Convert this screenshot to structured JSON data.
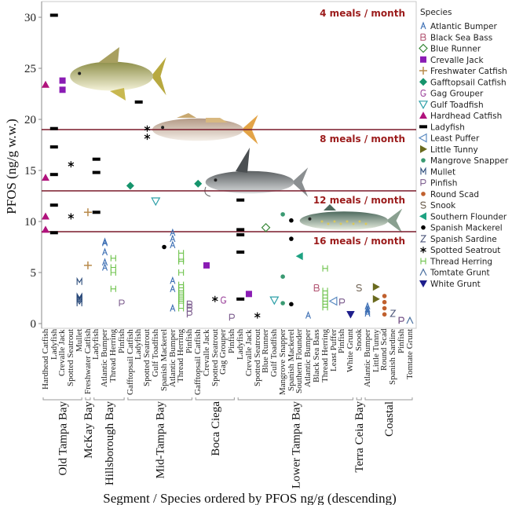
{
  "chart_data": {
    "type": "scatter",
    "xlabel": "Segment / Species ordered by PFOS ng/g (descending)",
    "ylabel": "PFOS (ng/g w.w.)",
    "ylim": [
      0,
      31
    ],
    "yticks": [
      0,
      5,
      10,
      15,
      20,
      25,
      30
    ],
    "grid": false,
    "legend": {
      "title": "Species",
      "placement": "right",
      "entries": [
        {
          "name": "Atlantic Bumper",
          "marker": "letter",
          "symbol": "A",
          "color": "#3d6fb4"
        },
        {
          "name": "Black Sea Bass",
          "marker": "letter",
          "symbol": "B",
          "color": "#b0506e"
        },
        {
          "name": "Blue Runner",
          "marker": "diamond-open",
          "color": "#3c8a3c"
        },
        {
          "name": "Crevalle Jack",
          "marker": "square",
          "color": "#8a1cb4"
        },
        {
          "name": "Freshwater Catfish",
          "marker": "plus",
          "color": "#b88a4a"
        },
        {
          "name": "Gafftopsail Catfish",
          "marker": "diamond",
          "color": "#16946c"
        },
        {
          "name": "Gag Grouper",
          "marker": "letter",
          "symbol": "G",
          "color": "#a04ca0"
        },
        {
          "name": "Gulf Toadfish",
          "marker": "triangle-down-open",
          "color": "#2ea0a8"
        },
        {
          "name": "Hardhead Catfish",
          "marker": "triangle-up",
          "color": "#b0127c"
        },
        {
          "name": "Ladyfish",
          "marker": "dash",
          "color": "#000000"
        },
        {
          "name": "Least Puffer",
          "marker": "triangle-left-open",
          "color": "#5a8ac0"
        },
        {
          "name": "Little Tunny",
          "marker": "triangle-right",
          "color": "#6a6a1e"
        },
        {
          "name": "Mangrove Snapper",
          "marker": "dot",
          "color": "#3a9a72"
        },
        {
          "name": "Mullet",
          "marker": "letter",
          "symbol": "M",
          "color": "#2a4a7a"
        },
        {
          "name": "Pinfish",
          "marker": "letter",
          "symbol": "P",
          "color": "#7a5a8c"
        },
        {
          "name": "Round Scad",
          "marker": "dot",
          "color": "#c0602e"
        },
        {
          "name": "Snook",
          "marker": "letter",
          "symbol": "S",
          "color": "#6a5c4c"
        },
        {
          "name": "Southern Flounder",
          "marker": "triangle-left",
          "color": "#1ea282"
        },
        {
          "name": "Spanish Mackerel",
          "marker": "dot",
          "color": "#000000"
        },
        {
          "name": "Spanish Sardine",
          "marker": "letter",
          "symbol": "Z",
          "color": "#4c567a"
        },
        {
          "name": "Spotted Seatrout",
          "marker": "asterisk",
          "color": "#000000"
        },
        {
          "name": "Thread Herring",
          "marker": "letter",
          "symbol": "H",
          "color": "#6cc24a"
        },
        {
          "name": "Tomtate Grunt",
          "marker": "caret",
          "color": "#4a70a0"
        },
        {
          "name": "White Grunt",
          "marker": "triangle-down",
          "color": "#1e1e8c"
        }
      ]
    },
    "thresholds": [
      {
        "value": 19,
        "label": "4 meals / month"
      },
      {
        "value": 13,
        "label": "8 meals / month"
      },
      {
        "value": 9,
        "label": "12 meals / month"
      },
      {
        "label": "16 meals / month"
      }
    ],
    "threshold_color": "#7a1a2a",
    "segments": [
      {
        "name": "Old Tampa Bay",
        "categories": [
          {
            "species": "Hardhead Catfish",
            "values": [
              23.4,
              14.3,
              10.5,
              9.2
            ]
          },
          {
            "species": "Ladyfish",
            "values": [
              30.2,
              19.1,
              17.3,
              14.6,
              11.6,
              8.9
            ]
          },
          {
            "species": "Crevalle Jack",
            "values": [
              23.8,
              22.9
            ]
          },
          {
            "species": "Spotted Seatrout",
            "values": [
              15.6,
              10.5
            ]
          },
          {
            "species": "Mullet",
            "values": [
              4.1,
              2.6,
              2.5,
              2.4,
              2.2,
              2.0
            ]
          }
        ]
      },
      {
        "name": "McKay Bay",
        "categories": [
          {
            "species": "Freshwater Catfish",
            "values": [
              10.9,
              5.7
            ]
          }
        ]
      },
      {
        "name": "Hillsborough Bay",
        "categories": [
          {
            "species": "Ladyfish",
            "values": [
              16.1,
              14.8,
              10.9
            ]
          },
          {
            "species": "Atlantic Bumper",
            "values": [
              8.0,
              7.9,
              7.0,
              6.0,
              5.5
            ]
          },
          {
            "species": "Thread Herring",
            "values": [
              6.4,
              5.5,
              5.0,
              3.4
            ]
          },
          {
            "species": "Pinfish",
            "values": [
              2.0
            ]
          }
        ]
      },
      {
        "name": "Mid-Tampa Bay",
        "categories": [
          {
            "species": "Gafftopsail Catfish",
            "values": [
              13.5
            ]
          },
          {
            "species": "Ladyfish",
            "values": [
              21.7
            ]
          },
          {
            "species": "Spotted Seatrout",
            "values": [
              19.1,
              18.3
            ]
          },
          {
            "species": "Gulf Toadfish",
            "values": [
              12.0
            ]
          },
          {
            "species": "Spanish Mackerel",
            "values": [
              7.5
            ]
          },
          {
            "species": "Atlantic Bumper",
            "values": [
              8.9,
              8.3,
              7.7,
              4.2,
              3.4,
              1.5
            ]
          },
          {
            "species": "Thread Herring",
            "values": [
              6.9,
              6.3,
              6.1,
              5.0,
              3.8,
              3.5,
              3.2,
              3.0,
              2.8,
              2.6,
              2.4,
              2.2,
              2.0,
              1.5
            ]
          },
          {
            "species": "Pinfish",
            "values": [
              1.9,
              1.6,
              1.3,
              0.9
            ]
          }
        ]
      },
      {
        "name": "Boca Ciega",
        "categories": [
          {
            "species": "Gafftopsail Catfish",
            "values": [
              13.7
            ]
          },
          {
            "species": "Crevalle Jack",
            "values": [
              5.7
            ]
          },
          {
            "species": "Spotted Seatrout",
            "values": [
              2.4
            ]
          },
          {
            "species": "Gag Grouper",
            "values": [
              2.3
            ]
          },
          {
            "species": "Pinfish",
            "values": [
              0.6
            ]
          }
        ]
      },
      {
        "name": "Lower Tampa Bay",
        "categories": [
          {
            "species": "Ladyfish",
            "values": [
              12.1,
              9.2,
              8.7,
              7.0,
              2.4
            ]
          },
          {
            "species": "Crevalle Jack",
            "values": [
              2.9
            ]
          },
          {
            "species": "Spotted Seatrout",
            "values": [
              0.8
            ]
          },
          {
            "species": "Blue Runner",
            "values": [
              9.4
            ]
          },
          {
            "species": "Gulf Toadfish",
            "values": [
              2.3
            ]
          },
          {
            "species": "Mangrove Snapper",
            "values": [
              10.7,
              4.6,
              2.0
            ]
          },
          {
            "species": "Spanish Mackerel",
            "values": [
              10.1,
              8.3,
              1.9
            ]
          },
          {
            "species": "Southern Flounder",
            "values": [
              6.6
            ]
          },
          {
            "species": "Atlantic Bumper",
            "values": [
              0.8
            ]
          },
          {
            "species": "Black Sea Bass",
            "values": [
              3.5
            ]
          },
          {
            "species": "Thread Herring",
            "values": [
              5.4,
              3.2,
              2.8,
              2.5,
              2.2,
              1.9,
              1.6
            ]
          },
          {
            "species": "Least Puffer",
            "values": [
              2.2
            ]
          },
          {
            "species": "Pinfish",
            "values": [
              2.1
            ]
          },
          {
            "species": "White Grunt",
            "values": [
              0.9,
              0.9,
              0.9,
              0.9
            ]
          }
        ]
      },
      {
        "name": "Terra Ceia Bay",
        "categories": [
          {
            "species": "Snook",
            "values": [
              3.5
            ]
          }
        ]
      },
      {
        "name": "Coastal",
        "categories": [
          {
            "species": "Atlantic Bumper",
            "values": [
              1.7,
              1.4,
              1.2,
              1.0
            ]
          },
          {
            "species": "Little Tunny",
            "values": [
              3.6,
              2.4
            ]
          },
          {
            "species": "Round Scad",
            "values": [
              2.7,
              2.1,
              1.5,
              0.9
            ]
          },
          {
            "species": "Spanish Sardine",
            "values": [
              1.0
            ]
          },
          {
            "species": "Pinfish",
            "values": [
              0.3,
              0.3,
              0.3
            ]
          },
          {
            "species": "Tomtate Grunt",
            "values": [
              0.3
            ]
          }
        ]
      }
    ]
  }
}
